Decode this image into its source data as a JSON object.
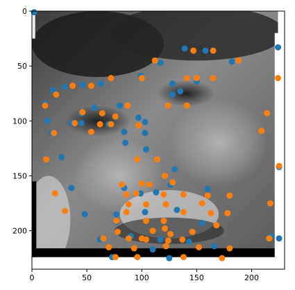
{
  "chart_data": {
    "type": "scatter",
    "title": "",
    "xlabel": "",
    "ylabel": "",
    "xlim": [
      0,
      230
    ],
    "ylim": [
      235,
      0
    ],
    "x_ticks": [
      0,
      50,
      100,
      150,
      200
    ],
    "y_ticks": [
      0,
      50,
      100,
      150,
      200
    ],
    "x_tick_labels": [
      "0",
      "50",
      "100",
      "150",
      "200"
    ],
    "y_tick_labels": [
      "0",
      "50",
      "100",
      "150",
      "200"
    ],
    "grid": false,
    "legend": "none",
    "background_image": {
      "description": "grayscale close-up photo",
      "x_extent": [
        0,
        224
      ],
      "y_extent": [
        0,
        224
      ]
    },
    "series": [
      {
        "color": "#1f77b4",
        "points": [
          [
            2,
            1
          ],
          [
            139,
            34
          ],
          [
            158,
            36
          ],
          [
            224,
            33
          ],
          [
            182,
            46
          ],
          [
            117,
            47
          ],
          [
            19,
            72
          ],
          [
            12,
            84
          ],
          [
            30,
            69
          ],
          [
            46,
            67
          ],
          [
            63,
            66
          ],
          [
            99,
            59
          ],
          [
            128,
            66
          ],
          [
            150,
            64
          ],
          [
            135,
            73
          ],
          [
            128,
            76
          ],
          [
            80,
            86
          ],
          [
            45,
            93
          ],
          [
            36,
            102
          ],
          [
            57,
            88
          ],
          [
            45,
            102
          ],
          [
            70,
            103
          ],
          [
            97,
            97
          ],
          [
            103,
            101
          ],
          [
            14,
            100
          ],
          [
            18,
            111
          ],
          [
            103,
            111
          ],
          [
            84,
            110
          ],
          [
            104,
            126
          ],
          [
            85,
            120
          ],
          [
            27,
            133
          ],
          [
            130,
            144
          ],
          [
            84,
            161
          ],
          [
            99,
            166
          ],
          [
            36,
            161
          ],
          [
            113,
            165
          ],
          [
            48,
            185
          ],
          [
            77,
            185
          ],
          [
            62,
            208
          ],
          [
            126,
            158
          ],
          [
            160,
            162
          ],
          [
            225,
            142
          ],
          [
            132,
            181
          ],
          [
            155,
            193
          ],
          [
            117,
            208
          ],
          [
            90,
            205
          ],
          [
            110,
            217
          ],
          [
            143,
            210
          ],
          [
            166,
            214
          ],
          [
            218,
            205
          ],
          [
            225,
            207
          ],
          [
            77,
            192
          ],
          [
            73,
            224
          ],
          [
            125,
            225
          ],
          [
            103,
            183
          ]
        ]
      },
      {
        "color": "#ff7f0e",
        "points": [
          [
            112,
            45
          ],
          [
            147,
            36
          ],
          [
            165,
            36
          ],
          [
            188,
            45
          ],
          [
            100,
            61
          ],
          [
            141,
            61
          ],
          [
            150,
            61
          ],
          [
            165,
            61
          ],
          [
            224,
            61
          ],
          [
            72,
            61
          ],
          [
            37,
            68
          ],
          [
            54,
            68
          ],
          [
            22,
            76
          ],
          [
            12,
            86
          ],
          [
            87,
            86
          ],
          [
            124,
            86
          ],
          [
            141,
            86
          ],
          [
            46,
            92
          ],
          [
            64,
            93
          ],
          [
            76,
            96
          ],
          [
            39,
            102
          ],
          [
            62,
            103
          ],
          [
            72,
            103
          ],
          [
            97,
            104
          ],
          [
            214,
            93
          ],
          [
            209,
            109
          ],
          [
            20,
            111
          ],
          [
            54,
            110
          ],
          [
            13,
            135
          ],
          [
            96,
            135
          ],
          [
            225,
            141
          ],
          [
            114,
            135
          ],
          [
            121,
            150
          ],
          [
            128,
            156
          ],
          [
            82,
            158
          ],
          [
            107,
            158
          ],
          [
            100,
            157
          ],
          [
            21,
            166
          ],
          [
            30,
            182
          ],
          [
            86,
            167
          ],
          [
            95,
            166
          ],
          [
            120,
            167
          ],
          [
            138,
            167
          ],
          [
            160,
            168
          ],
          [
            155,
            175
          ],
          [
            180,
            168
          ],
          [
            217,
            175
          ],
          [
            88,
            176
          ],
          [
            104,
            176
          ],
          [
            122,
            176
          ],
          [
            138,
            183
          ],
          [
            163,
            184
          ],
          [
            178,
            184
          ],
          [
            86,
            183
          ],
          [
            77,
            191
          ],
          [
            104,
            191
          ],
          [
            120,
            191
          ],
          [
            110,
            200
          ],
          [
            121,
            198
          ],
          [
            146,
            201
          ],
          [
            126,
            203
          ],
          [
            78,
            201
          ],
          [
            104,
            208
          ],
          [
            124,
            209
          ],
          [
            137,
            208
          ],
          [
            168,
            195
          ],
          [
            65,
            207
          ],
          [
            88,
            207
          ],
          [
            100,
            207
          ],
          [
            93,
            216
          ],
          [
            70,
            215
          ],
          [
            122,
            214
          ],
          [
            152,
            215
          ],
          [
            180,
            216
          ],
          [
            216,
            207
          ],
          [
            76,
            224
          ],
          [
            96,
            224
          ],
          [
            138,
            224
          ],
          [
            173,
            225
          ]
        ]
      }
    ]
  }
}
